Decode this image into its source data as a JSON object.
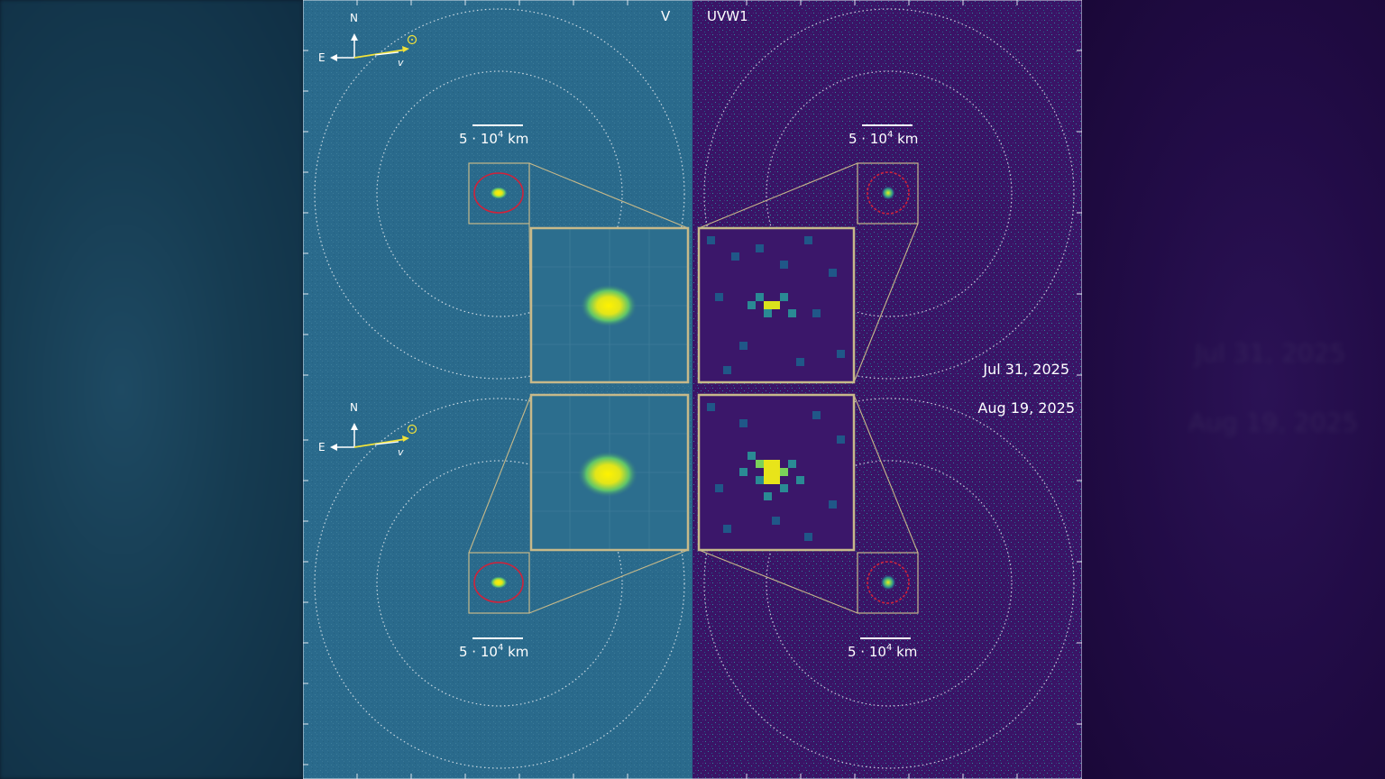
{
  "panels": {
    "left_filter": "V",
    "right_filter": "UVW1"
  },
  "scale_bar": {
    "prefix": "5 · 10",
    "exponent": "4",
    "unit": " km"
  },
  "compass": {
    "north": "N",
    "east": "E",
    "velocity": "v"
  },
  "dates": {
    "first": "Jul 31, 2025",
    "second": "Aug 19, 2025"
  },
  "colors": {
    "v_background": "#2a6a8c",
    "uvw1_background": "#3a1466",
    "inset_frame": "#c7b98a",
    "aperture": "#d0223a",
    "nucleus": "#f2e40f"
  },
  "ghost_text": {
    "first": "Jul 31, 2025",
    "second": "Aug 19, 2025"
  }
}
